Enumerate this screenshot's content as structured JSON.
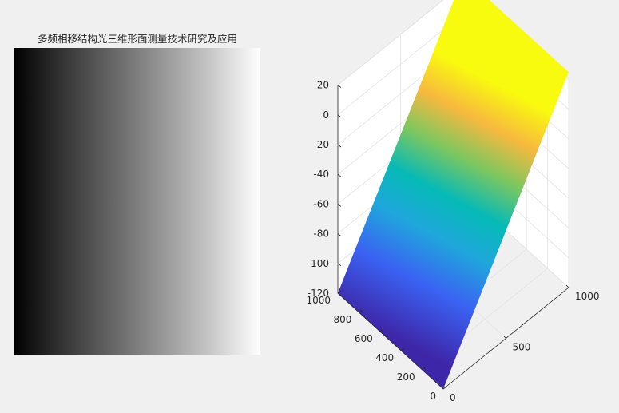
{
  "chart_data": [
    {
      "type": "heatmap",
      "title": "多频相移结构光三维形面测量技术研究及应用",
      "colormap": "gray",
      "description_gradient": "horizontal, black to white",
      "grid": false
    },
    {
      "type": "surface",
      "title": "",
      "colormap": "parula",
      "grid": true,
      "xlim": [
        0,
        1000
      ],
      "ylim": [
        0,
        1000
      ],
      "zlim": [
        -120,
        20
      ],
      "x_ticks": [
        0,
        500,
        1000
      ],
      "y_ticks": [
        0,
        200,
        400,
        600,
        800,
        1000
      ],
      "z_ticks": [
        -120,
        -100,
        -80,
        -60,
        -40,
        -20,
        0,
        20
      ],
      "surface": {
        "corners": [
          {
            "x": 0,
            "y": 0,
            "z": -120
          },
          {
            "x": 0,
            "y": 1000,
            "z": -120
          },
          {
            "x": 1000,
            "y": 1000,
            "z": 25
          },
          {
            "x": 1000,
            "y": 0,
            "z": 25
          }
        ]
      }
    }
  ]
}
